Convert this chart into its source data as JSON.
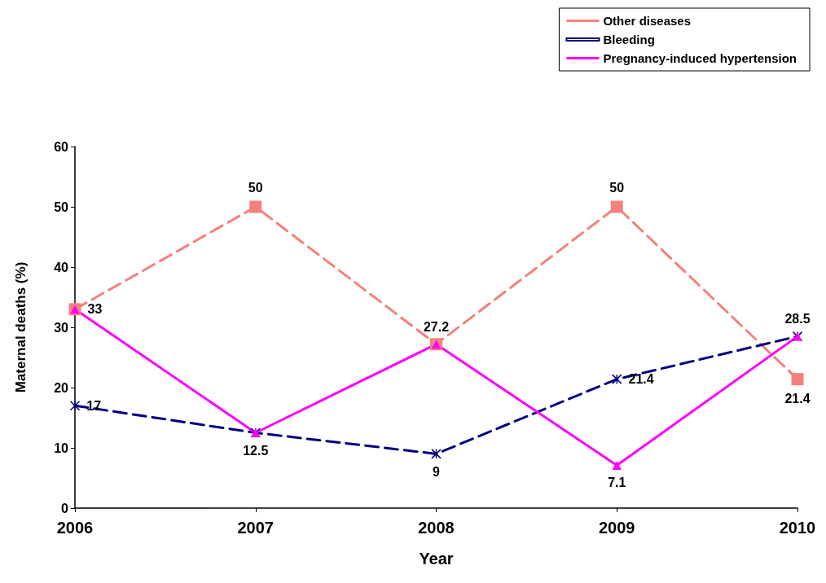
{
  "chart_data": {
    "type": "line",
    "xlabel": "Year",
    "ylabel": "Maternal deaths (%)",
    "categories": [
      "2006",
      "2007",
      "2008",
      "2009",
      "2010"
    ],
    "series": [
      {
        "name": "Other diseases",
        "color": "#f4817c",
        "marker": "square",
        "line_style": "dashed",
        "values": [
          33,
          50,
          27.2,
          50,
          21.4
        ],
        "value_labels": [
          "33",
          "50",
          null,
          "50",
          "21.4"
        ]
      },
      {
        "name": "Bleeding",
        "color": "#000080",
        "marker": "cross",
        "line_style": "dashed",
        "values": [
          17,
          12.5,
          9,
          21.4,
          28.5
        ],
        "value_labels": [
          "17",
          null,
          "9",
          "21.4",
          null
        ]
      },
      {
        "name": "Pregnancy-induced hypertension",
        "color": "#ff00ff",
        "marker": "triangle",
        "line_style": "solid",
        "values": [
          33,
          12.5,
          27.2,
          7.1,
          28.5
        ],
        "value_labels": [
          null,
          "12.5",
          "27.2",
          "7.1",
          "28.5"
        ]
      }
    ],
    "ylim": [
      0,
      60
    ],
    "yticks": [
      0,
      10,
      20,
      30,
      40,
      50,
      60
    ],
    "grid": false,
    "legend": "top right"
  }
}
